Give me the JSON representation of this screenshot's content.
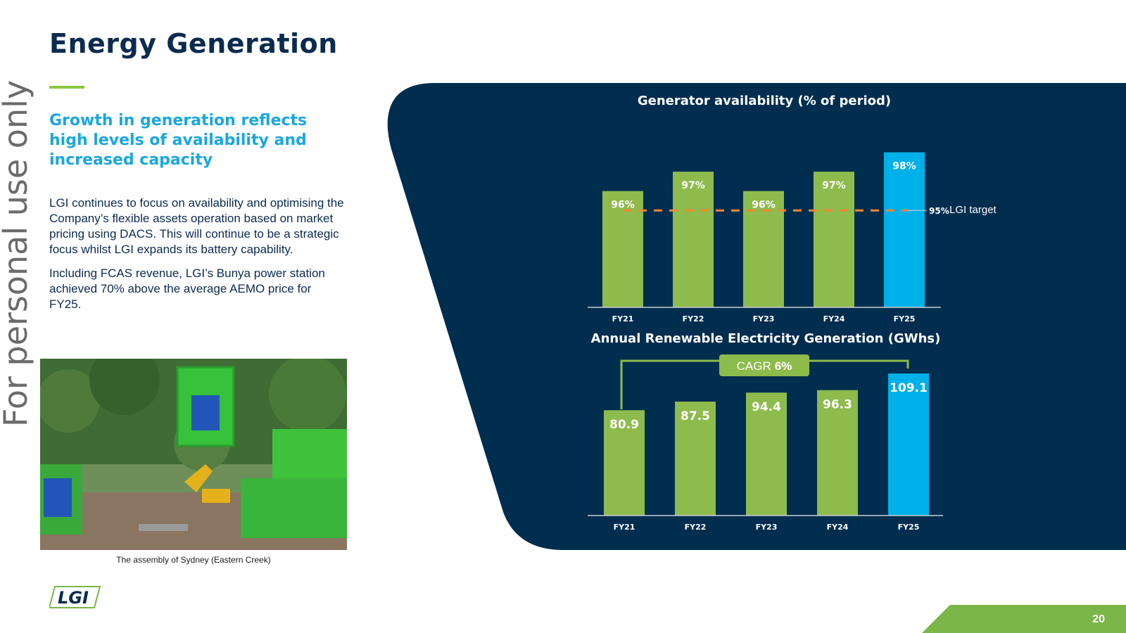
{
  "page": {
    "title": "Energy Generation",
    "subtitle": "Growth in generation reflects high levels of availability and increased capacity",
    "paragraphs": [
      "LGI continues to focus on availability and optimising the Company’s flexible assets operation based on market pricing using DACS. This will continue to be a strategic focus whilst LGI expands its battery capability.",
      "Including FCAS revenue, LGI’s Bunya power station achieved 70% above the average AEMO price for FY25."
    ],
    "watermark": "For personal use only",
    "photo_caption": "The assembly of Sydney (Eastern Creek)",
    "logo_text": "LGI",
    "page_number": "20"
  },
  "colors": {
    "navy": "#012d4f",
    "green": "#8dbb4c",
    "blue": "#00b0e8",
    "target": "#f58634",
    "title": "#0b2b4f"
  },
  "chart_data": [
    {
      "type": "bar",
      "title": "Generator availability (% of period)",
      "categories": [
        "FY21",
        "FY22",
        "FY23",
        "FY24",
        "FY25"
      ],
      "values": [
        96,
        97,
        96,
        97,
        98
      ],
      "value_labels": [
        "96%",
        "97%",
        "96%",
        "97%",
        "98%"
      ],
      "highlight_index": 4,
      "target": {
        "value": 95,
        "value_label": "95%",
        "label": "LGI target"
      },
      "ylim": [
        90,
        98.6
      ],
      "grid": false
    },
    {
      "type": "bar",
      "title": "Annual Renewable Electricity Generation (GWhs)",
      "categories": [
        "FY21",
        "FY22",
        "FY23",
        "FY24",
        "FY25"
      ],
      "values": [
        80.9,
        87.5,
        94.4,
        96.3,
        109.1
      ],
      "value_labels": [
        "80.9",
        "87.5",
        "94.4",
        "96.3",
        "109.1"
      ],
      "highlight_index": 4,
      "annotation": {
        "prefix": "CAGR",
        "value": "6%"
      },
      "ylim": [
        0,
        109.1
      ],
      "grid": false
    }
  ]
}
